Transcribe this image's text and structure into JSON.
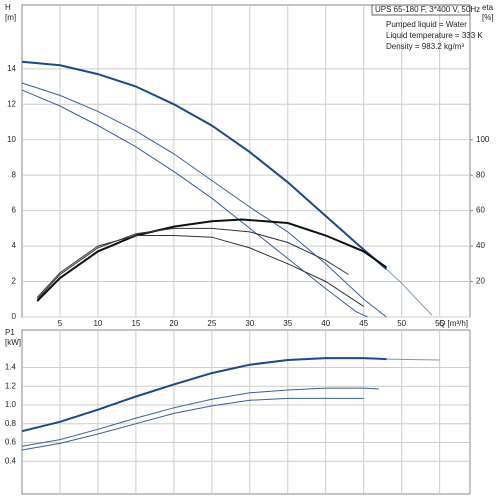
{
  "chart_data": [
    {
      "type": "line",
      "xlabel": "Q [m³/h]",
      "ylabel": [
        "H",
        "[m]"
      ],
      "y2label": [
        "eta",
        "[%]"
      ],
      "info": [
        "UPS 65-180 F, 3*400 V, 50Hz",
        "Pumped liquid = Water",
        "Liquid temperature = 333 K",
        "Density = 983.2 kg/m³"
      ],
      "xlim": [
        0,
        59
      ],
      "xticks": [
        5,
        10,
        15,
        20,
        25,
        30,
        35,
        40,
        45,
        50,
        55
      ],
      "ylim": [
        0,
        17.6
      ],
      "yticks": [
        0,
        2,
        4,
        6,
        8,
        10,
        12,
        14
      ],
      "y2lim": [
        0,
        176
      ],
      "y2ticks": [
        20,
        40,
        60,
        80,
        100
      ],
      "grid": true,
      "series": [
        {
          "color": "#1a4a8a",
          "width": 2,
          "x": [
            0,
            5,
            10,
            15,
            20,
            25,
            30,
            35,
            40,
            45,
            48
          ],
          "values": [
            14.4,
            14.2,
            13.7,
            13.0,
            12.0,
            10.8,
            9.3,
            7.6,
            5.7,
            3.8,
            2.7
          ]
        },
        {
          "color": "#7f95b5",
          "width": 1,
          "x": [
            48,
            50,
            52,
            54
          ],
          "values": [
            2.7,
            1.9,
            1.0,
            0.1
          ]
        },
        {
          "color": "#3a5f95",
          "width": 1,
          "x": [
            0,
            5,
            10,
            15,
            20,
            25,
            30,
            35,
            40,
            45,
            48
          ],
          "values": [
            13.2,
            12.5,
            11.6,
            10.5,
            9.2,
            7.7,
            6.2,
            4.8,
            3.0,
            1.0,
            0
          ]
        },
        {
          "color": "#3a5f95",
          "width": 1,
          "x": [
            0,
            5,
            10,
            15,
            20,
            25,
            30,
            35,
            40,
            44,
            45.5
          ],
          "values": [
            12.8,
            11.9,
            10.8,
            9.6,
            8.2,
            6.7,
            5.0,
            3.3,
            1.6,
            0.3,
            0
          ]
        },
        {
          "color": "#111111",
          "width": 2,
          "axis": "y2",
          "x": [
            2,
            5,
            10,
            15,
            20,
            25,
            29,
            35,
            40,
            45,
            48
          ],
          "values": [
            9,
            22,
            37,
            46,
            51,
            54,
            55,
            53,
            46,
            37,
            28
          ]
        },
        {
          "color": "#333333",
          "width": 1,
          "axis": "y2",
          "x": [
            2,
            5,
            10,
            15,
            20,
            25,
            30,
            35,
            40,
            43
          ],
          "values": [
            10,
            24,
            39,
            47,
            50,
            50,
            48,
            42,
            32,
            24
          ]
        },
        {
          "color": "#333333",
          "width": 1,
          "axis": "y2",
          "x": [
            2,
            5,
            10,
            15,
            20,
            25,
            30,
            35,
            40,
            45
          ],
          "values": [
            11,
            25,
            40,
            46,
            46,
            45,
            39,
            30,
            20,
            6
          ]
        }
      ]
    },
    {
      "type": "line",
      "ylabel": [
        "P1",
        "[kW]"
      ],
      "xlim": [
        0,
        59
      ],
      "xticks": [
        5,
        10,
        15,
        20,
        25,
        30,
        35,
        40,
        45,
        50,
        55
      ],
      "xtick_labels": false,
      "ylim": [
        0.05,
        1.8
      ],
      "yticks": [
        {
          "value": 0.4,
          "label": "0.4"
        },
        {
          "value": 0.6,
          "label": "0.6"
        },
        {
          "value": 0.8,
          "label": "0.8"
        },
        {
          "value": 1.0,
          "label": "1.0"
        },
        {
          "value": 1.2,
          "label": "1.2"
        },
        {
          "value": 1.4,
          "label": "1.4"
        }
      ],
      "grid": true,
      "series": [
        {
          "color": "#1a4a8a",
          "width": 2,
          "x": [
            0,
            5,
            10,
            15,
            20,
            25,
            30,
            35,
            40,
            45,
            48
          ],
          "values": [
            0.72,
            0.82,
            0.95,
            1.09,
            1.22,
            1.34,
            1.43,
            1.48,
            1.5,
            1.5,
            1.49
          ]
        },
        {
          "color": "#7f95b5",
          "width": 1,
          "x": [
            48,
            55
          ],
          "values": [
            1.49,
            1.48
          ]
        },
        {
          "color": "#3a5f95",
          "width": 1,
          "x": [
            0,
            5,
            10,
            15,
            20,
            25,
            30,
            35,
            40,
            45,
            47
          ],
          "values": [
            0.56,
            0.63,
            0.74,
            0.86,
            0.97,
            1.06,
            1.13,
            1.16,
            1.18,
            1.18,
            1.17
          ]
        },
        {
          "color": "#3a5f95",
          "width": 1,
          "x": [
            0,
            5,
            10,
            15,
            20,
            25,
            30,
            35,
            40,
            45
          ],
          "values": [
            0.52,
            0.59,
            0.69,
            0.8,
            0.91,
            0.99,
            1.05,
            1.07,
            1.07,
            1.07
          ]
        }
      ]
    }
  ]
}
